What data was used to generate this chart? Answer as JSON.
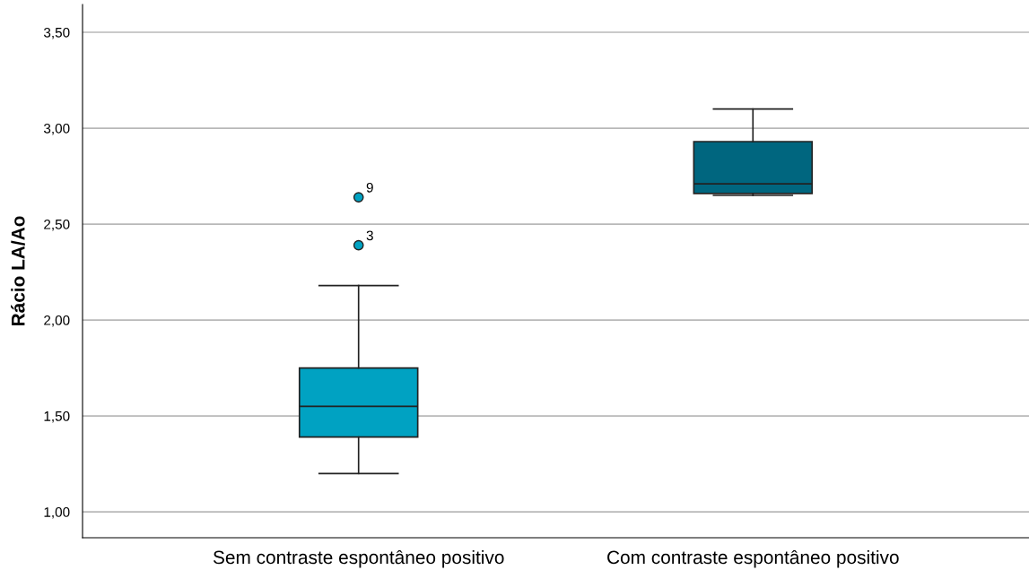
{
  "chart_data": {
    "type": "box",
    "ylabel": "Rácio LA/Ao",
    "categories": [
      "Sem contraste espontâneo positivo",
      "Com contraste espontâneo positivo"
    ],
    "boxes": [
      {
        "low": 1.2,
        "q1": 1.39,
        "median": 1.55,
        "q3": 1.75,
        "high": 2.18,
        "outliers": [
          2.64,
          2.39
        ]
      },
      {
        "low": 2.65,
        "q1": 2.66,
        "median": 2.71,
        "q3": 2.93,
        "high": 3.1
      }
    ],
    "colors": [
      "#00a2c2",
      "#00667f"
    ],
    "ylim": [
      0.865,
      3.645
    ],
    "yticks": [
      {
        "value": 1.0,
        "label": "1,00"
      },
      {
        "value": 1.5,
        "label": "1,50"
      },
      {
        "value": 2.0,
        "label": "2,00"
      },
      {
        "value": 2.5,
        "label": "2,50"
      },
      {
        "value": 3.0,
        "label": "3,00"
      },
      {
        "value": 3.5,
        "label": "3,50"
      }
    ],
    "grid": "y",
    "annotations": [
      "9",
      "3"
    ]
  }
}
